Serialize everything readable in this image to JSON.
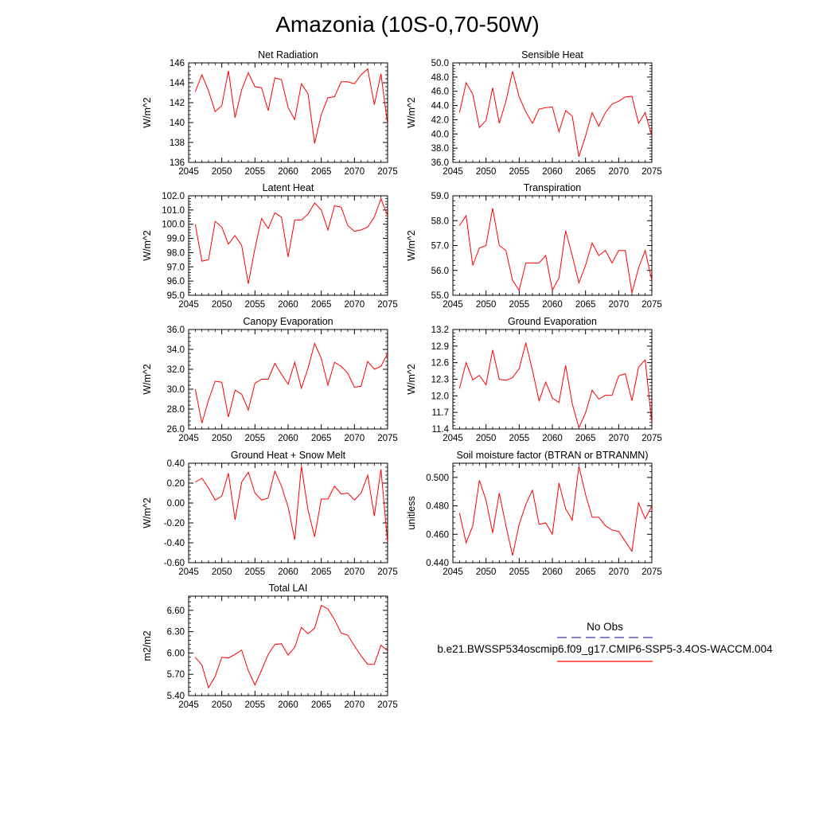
{
  "figure_title": "Amazonia (10S-0,70-50W)",
  "legend": {
    "obs_label": "No Obs",
    "obs_color": "#3a3aa8",
    "case_label": "b.e21.BWSSP534oscmip6.f09_g17.CMIP6-SSP5-3.4OS-WACCM.004",
    "case_color": "#ff0000"
  },
  "chart_data": [
    {
      "type": "line",
      "title": "Net Radiation",
      "ylabel": "W/m^2",
      "xlim": [
        2045,
        2075
      ],
      "ylim": [
        136,
        146
      ],
      "x_ticks": [
        2045,
        2050,
        2055,
        2060,
        2065,
        2070,
        2075
      ],
      "y_ticks": [
        "136",
        "138",
        "140",
        "142",
        "144",
        "146"
      ],
      "series": [
        {
          "color": "#ff0000",
          "x": [
            2046,
            2047,
            2048,
            2049,
            2050,
            2051,
            2052,
            2053,
            2054,
            2055,
            2056,
            2057,
            2058,
            2059,
            2060,
            2061,
            2062,
            2063,
            2064,
            2065,
            2066,
            2067,
            2068,
            2069,
            2070,
            2071,
            2072,
            2073,
            2074,
            2075
          ],
          "values": [
            143.1,
            144.8,
            143.2,
            141.1,
            141.7,
            145.2,
            140.5,
            143.3,
            145.0,
            143.6,
            143.5,
            141.2,
            144.5,
            144.3,
            141.5,
            140.3,
            143.9,
            142.9,
            137.9,
            140.8,
            142.5,
            142.6,
            144.1,
            144.1,
            143.9,
            144.8,
            145.4,
            141.8,
            144.9,
            139.8
          ]
        }
      ]
    },
    {
      "type": "line",
      "title": "Sensible Heat",
      "ylabel": "W/m^2",
      "xlim": [
        2045,
        2075
      ],
      "ylim": [
        36,
        50
      ],
      "x_ticks": [
        2045,
        2050,
        2055,
        2060,
        2065,
        2070,
        2075
      ],
      "y_ticks": [
        "36.0",
        "38.0",
        "40.0",
        "42.0",
        "44.0",
        "46.0",
        "48.0",
        "50.0"
      ],
      "series": [
        {
          "color": "#ff0000",
          "x": [
            2046,
            2047,
            2048,
            2049,
            2050,
            2051,
            2052,
            2053,
            2054,
            2055,
            2056,
            2057,
            2058,
            2059,
            2060,
            2061,
            2062,
            2063,
            2064,
            2065,
            2066,
            2067,
            2068,
            2069,
            2070,
            2071,
            2072,
            2073,
            2074,
            2075
          ],
          "values": [
            43.0,
            47.2,
            45.6,
            40.9,
            41.9,
            46.5,
            41.5,
            44.6,
            48.8,
            45.2,
            43.1,
            41.5,
            43.5,
            43.7,
            43.8,
            40.3,
            43.3,
            42.5,
            36.8,
            39.7,
            43.0,
            41.1,
            43.0,
            44.2,
            44.6,
            45.2,
            45.3,
            41.5,
            43.0,
            39.7
          ]
        }
      ]
    },
    {
      "type": "line",
      "title": "Latent Heat",
      "ylabel": "W/m^2",
      "xlim": [
        2045,
        2075
      ],
      "ylim": [
        95,
        102
      ],
      "x_ticks": [
        2045,
        2050,
        2055,
        2060,
        2065,
        2070,
        2075
      ],
      "y_ticks": [
        "95.0",
        "96.0",
        "97.0",
        "98.0",
        "99.0",
        "100.0",
        "101.0",
        "102.0"
      ],
      "series": [
        {
          "color": "#ff0000",
          "x": [
            2046,
            2047,
            2048,
            2049,
            2050,
            2051,
            2052,
            2053,
            2054,
            2055,
            2056,
            2057,
            2058,
            2059,
            2060,
            2061,
            2062,
            2063,
            2064,
            2065,
            2066,
            2067,
            2068,
            2069,
            2070,
            2071,
            2072,
            2073,
            2074,
            2075
          ],
          "values": [
            100.0,
            97.4,
            97.5,
            100.2,
            99.8,
            98.6,
            99.2,
            98.5,
            95.8,
            98.3,
            100.4,
            99.7,
            100.8,
            100.5,
            97.7,
            100.3,
            100.3,
            100.7,
            101.5,
            101.0,
            99.6,
            101.3,
            101.2,
            99.9,
            99.5,
            99.6,
            99.8,
            100.5,
            101.8,
            100.6
          ]
        }
      ]
    },
    {
      "type": "line",
      "title": "Transpiration",
      "ylabel": "W/m^2",
      "xlim": [
        2045,
        2075
      ],
      "ylim": [
        55,
        59
      ],
      "x_ticks": [
        2045,
        2050,
        2055,
        2060,
        2065,
        2070,
        2075
      ],
      "y_ticks": [
        "55.0",
        "56.0",
        "57.0",
        "58.0",
        "59.0"
      ],
      "series": [
        {
          "color": "#ff0000",
          "x": [
            2046,
            2047,
            2048,
            2049,
            2050,
            2051,
            2052,
            2053,
            2054,
            2055,
            2056,
            2057,
            2058,
            2059,
            2060,
            2061,
            2062,
            2063,
            2064,
            2065,
            2066,
            2067,
            2068,
            2069,
            2070,
            2071,
            2072,
            2073,
            2074,
            2075
          ],
          "values": [
            57.8,
            58.2,
            56.2,
            56.9,
            57.0,
            58.5,
            57.0,
            56.8,
            55.6,
            55.2,
            56.3,
            56.3,
            56.3,
            56.6,
            55.2,
            55.7,
            57.6,
            56.6,
            55.5,
            56.2,
            57.1,
            56.6,
            56.8,
            56.3,
            56.8,
            56.8,
            55.1,
            56.1,
            56.8,
            55.6
          ]
        }
      ]
    },
    {
      "type": "line",
      "title": "Canopy Evaporation",
      "ylabel": "W/m^2",
      "xlim": [
        2045,
        2075
      ],
      "ylim": [
        26,
        36
      ],
      "x_ticks": [
        2045,
        2050,
        2055,
        2060,
        2065,
        2070,
        2075
      ],
      "y_ticks": [
        "26.0",
        "28.0",
        "30.0",
        "32.0",
        "34.0",
        "36.0"
      ],
      "series": [
        {
          "color": "#ff0000",
          "x": [
            2046,
            2047,
            2048,
            2049,
            2050,
            2051,
            2052,
            2053,
            2054,
            2055,
            2056,
            2057,
            2058,
            2059,
            2060,
            2061,
            2062,
            2063,
            2064,
            2065,
            2066,
            2067,
            2068,
            2069,
            2070,
            2071,
            2072,
            2073,
            2074,
            2075
          ],
          "values": [
            30.0,
            26.6,
            28.9,
            30.8,
            30.7,
            27.2,
            29.9,
            29.5,
            27.9,
            30.6,
            31.0,
            31.0,
            32.6,
            31.5,
            30.5,
            32.7,
            30.1,
            32.1,
            34.6,
            33.1,
            30.4,
            32.7,
            32.3,
            31.6,
            30.2,
            30.3,
            32.8,
            32.0,
            32.3,
            33.6
          ]
        }
      ]
    },
    {
      "type": "line",
      "title": "Ground Evaporation",
      "ylabel": "W/m^2",
      "xlim": [
        2045,
        2075
      ],
      "ylim": [
        11.4,
        13.2
      ],
      "x_ticks": [
        2045,
        2050,
        2055,
        2060,
        2065,
        2070,
        2075
      ],
      "y_ticks": [
        "11.4",
        "11.7",
        "12.0",
        "12.3",
        "12.6",
        "12.9",
        "13.2"
      ],
      "series": [
        {
          "color": "#ff0000",
          "x": [
            2046,
            2047,
            2048,
            2049,
            2050,
            2051,
            2052,
            2053,
            2054,
            2055,
            2056,
            2057,
            2058,
            2059,
            2060,
            2061,
            2062,
            2063,
            2064,
            2065,
            2066,
            2067,
            2068,
            2069,
            2070,
            2071,
            2072,
            2073,
            2074,
            2075
          ],
          "values": [
            12.13,
            12.6,
            12.29,
            12.37,
            12.2,
            12.83,
            12.3,
            12.28,
            12.33,
            12.49,
            12.96,
            12.46,
            11.91,
            12.25,
            11.96,
            11.88,
            12.55,
            11.86,
            11.42,
            11.69,
            12.1,
            11.94,
            12.01,
            12.01,
            12.36,
            12.4,
            11.91,
            12.52,
            12.65,
            11.5
          ]
        }
      ]
    },
    {
      "type": "line",
      "title": "Ground Heat + Snow Melt",
      "ylabel": "W/m^2",
      "xlim": [
        2045,
        2075
      ],
      "ylim": [
        -0.6,
        0.4
      ],
      "x_ticks": [
        2045,
        2050,
        2055,
        2060,
        2065,
        2070,
        2075
      ],
      "y_ticks": [
        "-0.60",
        "-0.40",
        "-0.20",
        "0.00",
        "0.20",
        "0.40"
      ],
      "series": [
        {
          "color": "#ff0000",
          "x": [
            2046,
            2047,
            2048,
            2049,
            2050,
            2051,
            2052,
            2053,
            2054,
            2055,
            2056,
            2057,
            2058,
            2059,
            2060,
            2061,
            2062,
            2063,
            2064,
            2065,
            2066,
            2067,
            2068,
            2069,
            2070,
            2071,
            2072,
            2073,
            2074,
            2075
          ],
          "values": [
            0.21,
            0.25,
            0.15,
            0.03,
            0.07,
            0.3,
            -0.17,
            0.21,
            0.31,
            0.1,
            0.03,
            0.05,
            0.32,
            0.17,
            -0.04,
            -0.37,
            0.37,
            -0.07,
            -0.34,
            0.04,
            0.04,
            0.17,
            0.09,
            0.1,
            0.03,
            0.1,
            0.28,
            -0.13,
            0.34,
            -0.4
          ]
        }
      ]
    },
    {
      "type": "line",
      "title": "Soil moisture factor (BTRAN or BTRANMN)",
      "ylabel": "unitless",
      "xlim": [
        2045,
        2075
      ],
      "ylim": [
        0.44,
        0.51
      ],
      "x_ticks": [
        2045,
        2050,
        2055,
        2060,
        2065,
        2070,
        2075
      ],
      "y_ticks": [
        "0.440",
        "0.460",
        "0.480",
        "0.500"
      ],
      "series": [
        {
          "color": "#ff0000",
          "x": [
            2046,
            2047,
            2048,
            2049,
            2050,
            2051,
            2052,
            2053,
            2054,
            2055,
            2056,
            2057,
            2058,
            2059,
            2060,
            2061,
            2062,
            2063,
            2064,
            2065,
            2066,
            2067,
            2068,
            2069,
            2070,
            2071,
            2072,
            2073,
            2074,
            2075
          ],
          "values": [
            0.475,
            0.454,
            0.466,
            0.498,
            0.484,
            0.461,
            0.489,
            0.466,
            0.445,
            0.467,
            0.481,
            0.491,
            0.467,
            0.468,
            0.46,
            0.496,
            0.478,
            0.47,
            0.508,
            0.488,
            0.472,
            0.472,
            0.466,
            0.463,
            0.462,
            0.455,
            0.448,
            0.482,
            0.471,
            0.48
          ]
        }
      ]
    },
    {
      "type": "line",
      "title": "Total LAI",
      "ylabel": "m2/m2",
      "xlim": [
        2045,
        2075
      ],
      "ylim": [
        5.4,
        6.8
      ],
      "x_ticks": [
        2045,
        2050,
        2055,
        2060,
        2065,
        2070,
        2075
      ],
      "y_ticks": [
        "5.40",
        "5.70",
        "6.00",
        "6.30",
        "6.60"
      ],
      "series": [
        {
          "color": "#ff0000",
          "x": [
            2046,
            2047,
            2048,
            2049,
            2050,
            2051,
            2052,
            2053,
            2054,
            2055,
            2056,
            2057,
            2058,
            2059,
            2060,
            2061,
            2062,
            2063,
            2064,
            2065,
            2066,
            2067,
            2068,
            2069,
            2070,
            2071,
            2072,
            2073,
            2074,
            2075
          ],
          "values": [
            5.94,
            5.83,
            5.51,
            5.67,
            5.94,
            5.93,
            5.98,
            6.04,
            5.75,
            5.55,
            5.76,
            5.98,
            6.12,
            6.13,
            5.97,
            6.08,
            6.36,
            6.27,
            6.35,
            6.67,
            6.62,
            6.47,
            6.28,
            6.25,
            6.1,
            5.96,
            5.84,
            5.84,
            6.11,
            6.03
          ]
        }
      ]
    }
  ]
}
